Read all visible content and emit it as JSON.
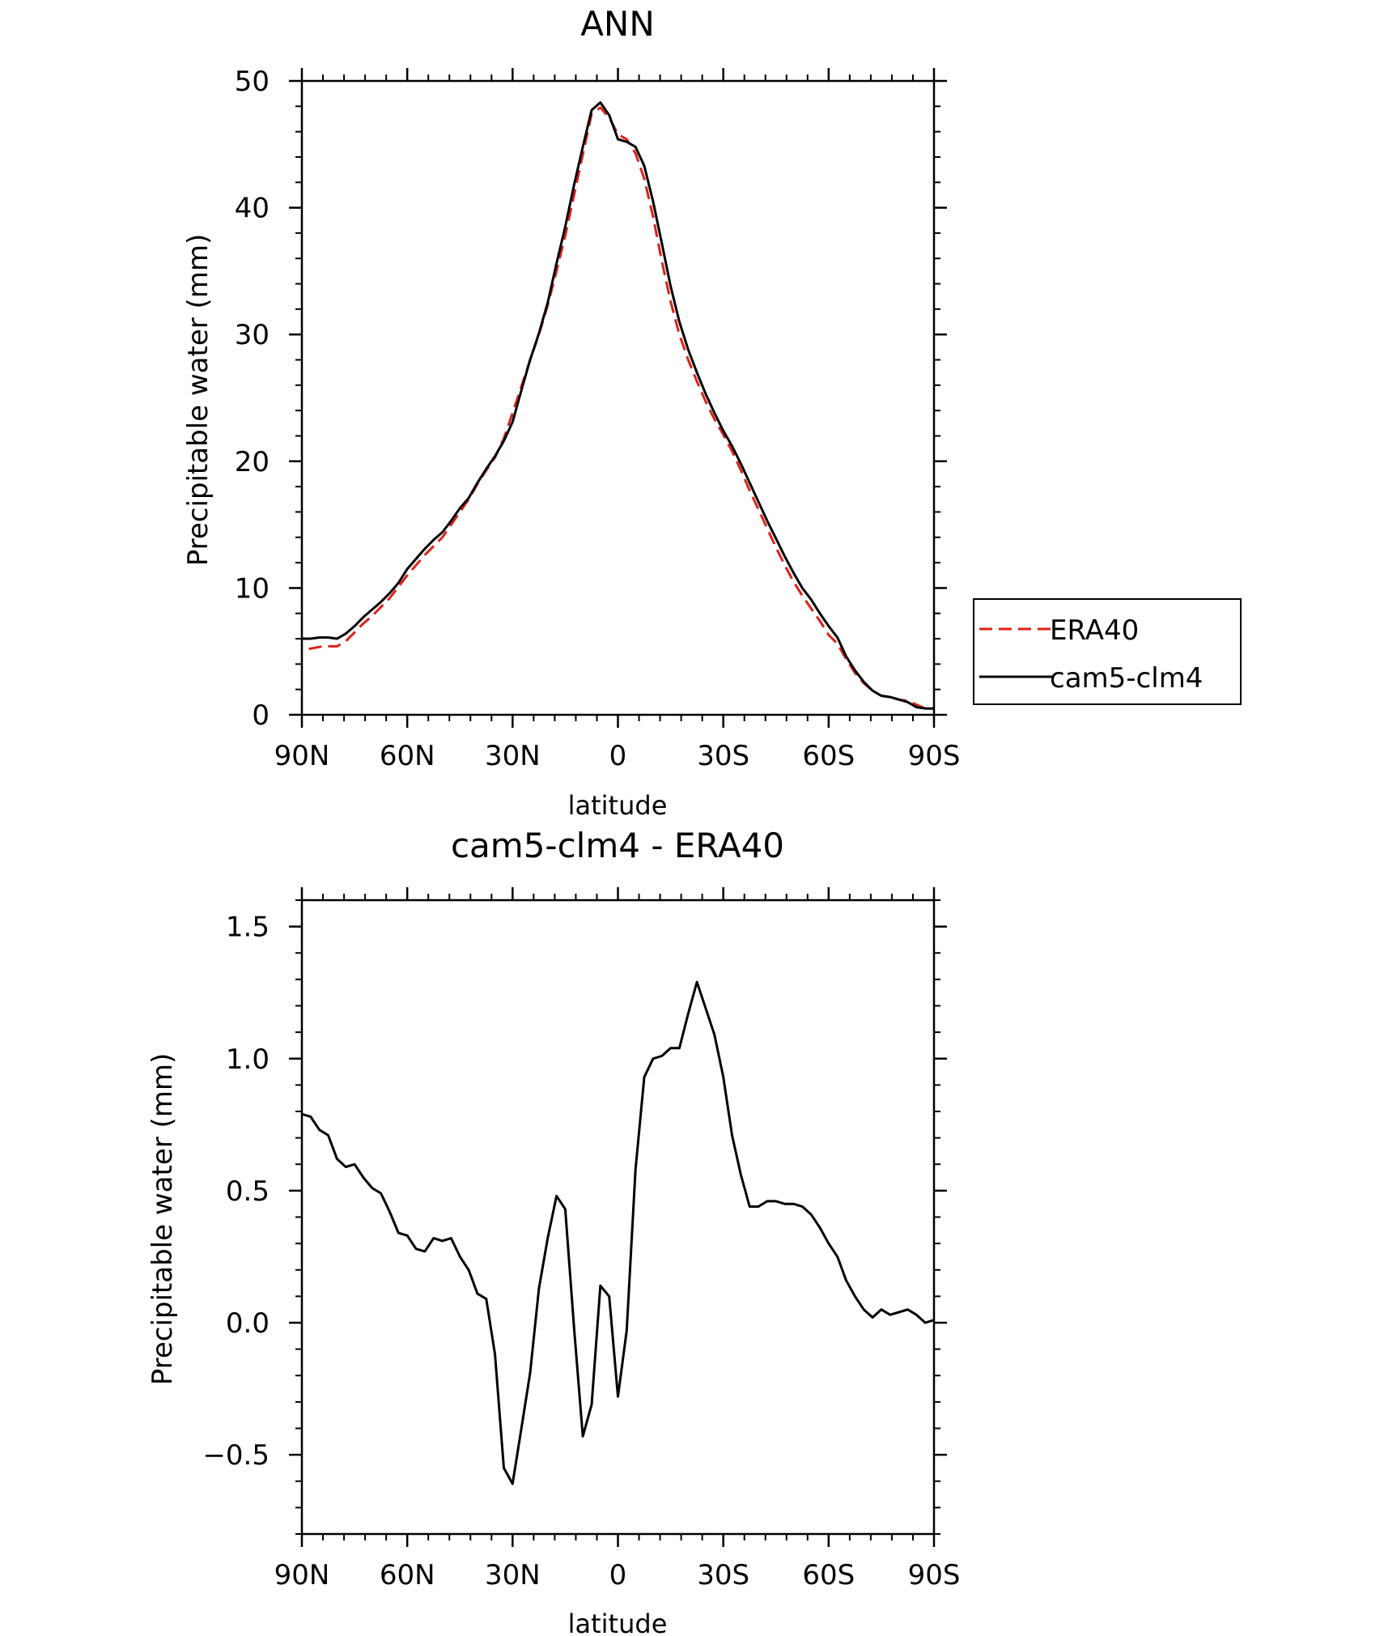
{
  "chart_data": [
    {
      "type": "line",
      "title": "ANN",
      "xlabel": "latitude",
      "ylabel": "Precipitable water (mm)",
      "xlim": [
        90,
        -90
      ],
      "ylim": [
        0,
        50
      ],
      "xticks": [
        90,
        60,
        30,
        0,
        -30,
        -60,
        -90
      ],
      "xtick_labels": [
        "90N",
        "60N",
        "30N",
        "0",
        "30S",
        "60S",
        "90S"
      ],
      "yticks": [
        0,
        10,
        20,
        30,
        40,
        50
      ],
      "ytick_labels": [
        "0",
        "10",
        "20",
        "30",
        "40",
        "50"
      ],
      "legend_position": "right",
      "series": [
        {
          "name": "ERA40",
          "color": "#e0201a",
          "dash": "dashed",
          "x": [
            88,
            84,
            80,
            77.5,
            75,
            72.5,
            70,
            67.5,
            65,
            62.5,
            60,
            57.5,
            55,
            52.5,
            50,
            47.5,
            45,
            42.5,
            40,
            37.5,
            35,
            32.5,
            30,
            27.5,
            25,
            22.5,
            20,
            17.5,
            15,
            12.5,
            10,
            7.5,
            5,
            2.5,
            0,
            -2.5,
            -5,
            -7.5,
            -10,
            -12.5,
            -15,
            -17.5,
            -20,
            -22.5,
            -25,
            -27.5,
            -30,
            -32.5,
            -35,
            -37.5,
            -40,
            -42.5,
            -45,
            -47.5,
            -50,
            -52.5,
            -55,
            -57.5,
            -60,
            -62.5,
            -65,
            -67.5,
            -70,
            -72.5,
            -75,
            -77.5,
            -80,
            -82.5,
            -85,
            -87.5,
            -90
          ],
          "y": [
            5.2,
            5.4,
            5.4,
            5.8,
            6.5,
            7.2,
            7.8,
            8.5,
            9.2,
            10.1,
            11.0,
            11.8,
            12.6,
            13.3,
            14.0,
            15.0,
            16.0,
            17.0,
            18.2,
            19.3,
            20.3,
            21.8,
            23.8,
            25.9,
            28.0,
            30.0,
            32.3,
            35.0,
            37.8,
            41.0,
            44.2,
            47.4,
            47.9,
            47.1,
            45.8,
            45.4,
            44.3,
            42.3,
            39.3,
            35.8,
            32.6,
            30.0,
            28.0,
            26.3,
            24.7,
            23.3,
            22.1,
            20.8,
            19.3,
            17.7,
            16.2,
            14.7,
            13.2,
            11.8,
            10.5,
            9.4,
            8.4,
            7.4,
            6.3,
            5.6,
            4.4,
            3.3,
            2.5,
            1.9,
            1.5,
            1.4,
            1.2,
            1.1,
            0.8,
            0.5,
            0.5
          ]
        },
        {
          "name": "cam5-clm4",
          "color": "#000000",
          "dash": "solid",
          "x": [
            90,
            87.5,
            85,
            82.5,
            80,
            77.5,
            75,
            72.5,
            70,
            67.5,
            65,
            62.5,
            60,
            57.5,
            55,
            52.5,
            50,
            47.5,
            45,
            42.5,
            40,
            37.5,
            35,
            32.5,
            30,
            27.5,
            25,
            22.5,
            20,
            17.5,
            15,
            12.5,
            10,
            7.5,
            5,
            2.5,
            0,
            -2.5,
            -5,
            -7.5,
            -10,
            -12.5,
            -15,
            -17.5,
            -20,
            -22.5,
            -25,
            -27.5,
            -30,
            -32.5,
            -35,
            -37.5,
            -40,
            -42.5,
            -45,
            -47.5,
            -50,
            -52.5,
            -55,
            -57.5,
            -60,
            -62.5,
            -65,
            -67.5,
            -70,
            -72.5,
            -75,
            -77.5,
            -80,
            -82.5,
            -85,
            -87.5,
            -90
          ],
          "y": [
            6.0,
            6.0,
            6.1,
            6.1,
            6.0,
            6.4,
            7.0,
            7.7,
            8.3,
            8.9,
            9.6,
            10.4,
            11.5,
            12.3,
            13.1,
            13.8,
            14.4,
            15.3,
            16.3,
            17.1,
            18.3,
            19.4,
            20.4,
            21.6,
            23.1,
            25.6,
            28.0,
            30.1,
            32.5,
            35.6,
            38.5,
            41.8,
            44.8,
            47.7,
            48.3,
            47.3,
            45.4,
            45.2,
            44.8,
            43.3,
            40.5,
            37.2,
            33.8,
            31.0,
            28.8,
            27.0,
            25.3,
            23.8,
            22.4,
            21.2,
            19.8,
            18.3,
            16.8,
            15.3,
            13.9,
            12.5,
            11.2,
            10.0,
            9.1,
            8.0,
            7.0,
            6.1,
            4.6,
            3.5,
            2.6,
            1.9,
            1.5,
            1.4,
            1.2,
            1.0,
            0.6,
            0.5,
            0.5
          ]
        }
      ]
    },
    {
      "type": "line",
      "title": "cam5-clm4 - ERA40",
      "xlabel": "latitude",
      "ylabel": "Precipitable water (mm)",
      "xlim": [
        90,
        -90
      ],
      "ylim": [
        -0.8,
        1.6
      ],
      "xticks": [
        90,
        60,
        30,
        0,
        -30,
        -60,
        -90
      ],
      "xtick_labels": [
        "90N",
        "60N",
        "30N",
        "0",
        "30S",
        "60S",
        "90S"
      ],
      "yticks": [
        -0.5,
        0,
        0.5,
        1.0,
        1.5
      ],
      "ytick_labels": [
        "−0.5",
        "0.0",
        "0.5",
        "1.0",
        "1.5"
      ],
      "series": [
        {
          "color": "#000000",
          "dash": "solid",
          "x": [
            90,
            87.5,
            85,
            82.5,
            80,
            77.5,
            75,
            72.5,
            70,
            67.5,
            65,
            62.5,
            60,
            57.5,
            55,
            52.5,
            50,
            47.5,
            45,
            42.5,
            40,
            37.5,
            35,
            32.5,
            30,
            27.5,
            25,
            22.5,
            20,
            17.5,
            15,
            12.5,
            10,
            7.5,
            5,
            2.5,
            0,
            -2.5,
            -5,
            -7.5,
            -10,
            -12.5,
            -15,
            -17.5,
            -20,
            -22.5,
            -25,
            -27.5,
            -30,
            -32.5,
            -35,
            -37.5,
            -40,
            -42.5,
            -45,
            -47.5,
            -50,
            -52.5,
            -55,
            -57.5,
            -60,
            -62.5,
            -65,
            -67.5,
            -70,
            -72.5,
            -75,
            -77.5,
            -80,
            -82.5,
            -85,
            -87.5,
            -90
          ],
          "y": [
            0.79,
            0.78,
            0.73,
            0.71,
            0.62,
            0.59,
            0.6,
            0.55,
            0.51,
            0.49,
            0.42,
            0.34,
            0.33,
            0.28,
            0.27,
            0.32,
            0.31,
            0.32,
            0.25,
            0.2,
            0.11,
            0.09,
            -0.12,
            -0.55,
            -0.61,
            -0.4,
            -0.19,
            0.13,
            0.32,
            0.48,
            0.43,
            -0.02,
            -0.43,
            -0.31,
            0.14,
            0.1,
            -0.28,
            -0.03,
            0.58,
            0.93,
            1.0,
            1.01,
            1.04,
            1.04,
            1.17,
            1.29,
            1.19,
            1.09,
            0.93,
            0.71,
            0.56,
            0.44,
            0.44,
            0.46,
            0.46,
            0.45,
            0.45,
            0.44,
            0.41,
            0.36,
            0.3,
            0.25,
            0.16,
            0.1,
            0.05,
            0.02,
            0.05,
            0.03,
            0.04,
            0.05,
            0.03,
            0.0,
            0.01
          ]
        }
      ]
    }
  ]
}
